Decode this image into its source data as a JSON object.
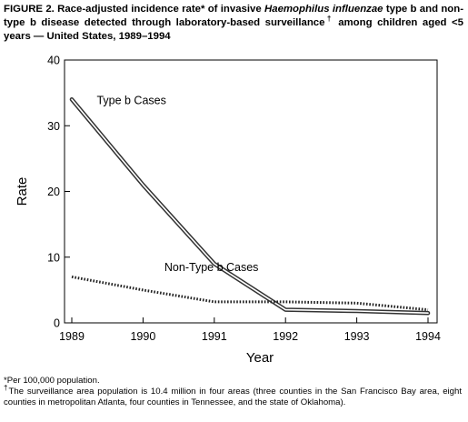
{
  "caption": {
    "prefix": "FIGURE 2. Race-adjusted incidence rate* of invasive ",
    "italic": "Haemophilus influenzae",
    "middle": " type b and non-type b disease detected through laboratory-based surveillance",
    "dagger": "†",
    "suffix": " among children aged <5 years — United States, 1989–1994"
  },
  "footnotes": {
    "note1": "*Per 100,000 population.",
    "note2_mark": "†",
    "note2": "The surveillance area population is 10.4 million in four areas (three counties in the San Francisco Bay area, eight counties in metropolitan Atlanta, four counties in Tennessee, and the state of Oklahoma)."
  },
  "chart_data": {
    "type": "line",
    "title": "",
    "xlabel": "Year",
    "ylabel": "Rate",
    "xlim": [
      1989,
      1994
    ],
    "ylim": [
      0,
      40
    ],
    "x_ticks": [
      1989,
      1990,
      1991,
      1992,
      1993,
      1994
    ],
    "y_ticks": [
      0,
      10,
      20,
      30,
      40
    ],
    "grid": false,
    "legend": "none (series labeled directly on plot)",
    "series": [
      {
        "name": "Type b Cases",
        "style": "double line",
        "x": [
          1989,
          1990,
          1991,
          1992,
          1993,
          1994
        ],
        "y": [
          34,
          21,
          9,
          2,
          1.8,
          1.5
        ]
      },
      {
        "name": "Non-Type b Cases",
        "style": "dotted",
        "x": [
          1989,
          1990,
          1991,
          1992,
          1993,
          1994
        ],
        "y": [
          7,
          5,
          3.2,
          3.2,
          3,
          2
        ]
      }
    ]
  }
}
